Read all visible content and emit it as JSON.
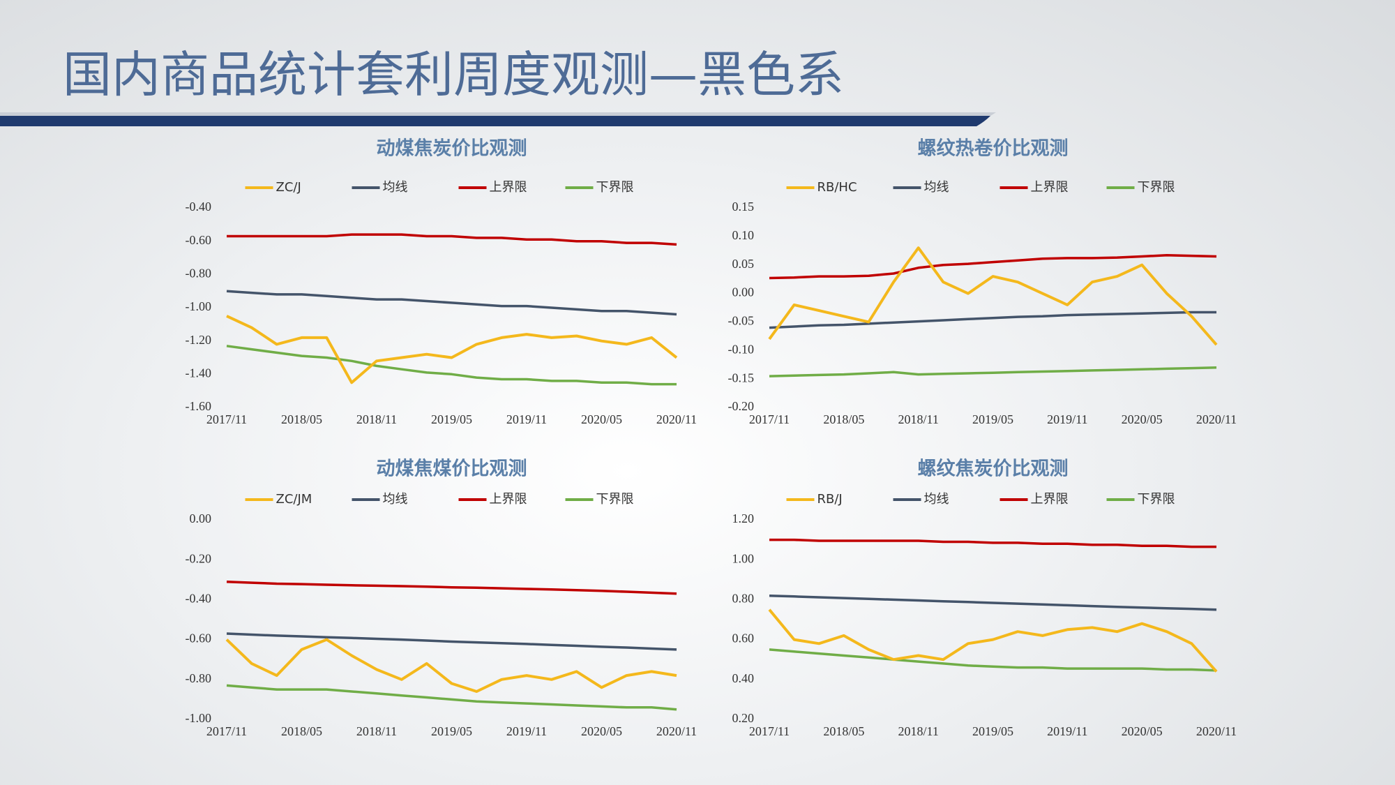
{
  "header": {
    "title": "国内商品统计套利周度观测—黑色系"
  },
  "chart_data": [
    {
      "type": "line",
      "title": "动煤焦炭价比观测",
      "categories": [
        "2017/11",
        null,
        null,
        "2018/05",
        null,
        null,
        "2018/11",
        null,
        null,
        "2019/05",
        null,
        null,
        "2019/11",
        null,
        null,
        "2020/05",
        null,
        null,
        "2020/11"
      ],
      "series": [
        {
          "name": "ZC/J",
          "color": "#f4b81c",
          "values": [
            -1.05,
            -1.12,
            -1.22,
            -1.18,
            -1.18,
            -1.45,
            -1.32,
            -1.3,
            -1.28,
            -1.3,
            -1.22,
            -1.18,
            -1.16,
            -1.18,
            -1.17,
            -1.2,
            -1.22,
            -1.18,
            -1.3
          ]
        },
        {
          "name": "均线",
          "color": "#44546a",
          "values": [
            -0.9,
            -0.91,
            -0.92,
            -0.92,
            -0.93,
            -0.94,
            -0.95,
            -0.95,
            -0.96,
            -0.97,
            -0.98,
            -0.99,
            -0.99,
            -1.0,
            -1.01,
            -1.02,
            -1.02,
            -1.03,
            -1.04
          ]
        },
        {
          "name": "上界限",
          "color": "#c00000",
          "values": [
            -0.57,
            -0.57,
            -0.57,
            -0.57,
            -0.57,
            -0.56,
            -0.56,
            -0.56,
            -0.57,
            -0.57,
            -0.58,
            -0.58,
            -0.59,
            -0.59,
            -0.6,
            -0.6,
            -0.61,
            -0.61,
            -0.62
          ]
        },
        {
          "name": "下界限",
          "color": "#70ad47",
          "values": [
            -1.23,
            -1.25,
            -1.27,
            -1.29,
            -1.3,
            -1.32,
            -1.35,
            -1.37,
            -1.39,
            -1.4,
            -1.42,
            -1.43,
            -1.43,
            -1.44,
            -1.44,
            -1.45,
            -1.45,
            -1.46,
            -1.46
          ]
        }
      ],
      "ylim": [
        -1.6,
        -0.4
      ],
      "yticks": [
        {
          "value": -0.4,
          "label": "-0.40"
        },
        {
          "value": -0.6,
          "label": "-0.60"
        },
        {
          "value": -0.8,
          "label": "-0.80"
        },
        {
          "value": -1.0,
          "label": "-1.00"
        },
        {
          "value": -1.2,
          "label": "-1.20"
        },
        {
          "value": -1.4,
          "label": "-1.40"
        },
        {
          "value": -1.6,
          "label": "-1.60"
        }
      ],
      "legend": "top"
    },
    {
      "type": "line",
      "title": "螺纹热卷价比观测",
      "categories": [
        "2017/11",
        null,
        null,
        "2018/05",
        null,
        null,
        "2018/11",
        null,
        null,
        "2019/05",
        null,
        null,
        "2019/11",
        null,
        null,
        "2020/05",
        null,
        null,
        "2020/11"
      ],
      "series": [
        {
          "name": "RB/HC",
          "color": "#f4b81c",
          "values": [
            -0.08,
            -0.02,
            -0.03,
            -0.04,
            -0.05,
            0.02,
            0.08,
            0.02,
            0.0,
            0.03,
            0.02,
            0.0,
            -0.02,
            0.02,
            0.03,
            0.05,
            0.0,
            -0.04,
            -0.09
          ]
        },
        {
          "name": "均线",
          "color": "#44546a",
          "values": [
            -0.06,
            -0.058,
            -0.056,
            -0.055,
            -0.053,
            -0.051,
            -0.049,
            -0.047,
            -0.045,
            -0.043,
            -0.041,
            -0.04,
            -0.038,
            -0.037,
            -0.036,
            -0.035,
            -0.034,
            -0.033,
            -0.033
          ]
        },
        {
          "name": "上界限",
          "color": "#c00000",
          "values": [
            0.027,
            0.028,
            0.03,
            0.03,
            0.031,
            0.035,
            0.045,
            0.05,
            0.052,
            0.055,
            0.058,
            0.061,
            0.062,
            0.062,
            0.063,
            0.065,
            0.067,
            0.066,
            0.065
          ]
        },
        {
          "name": "下界限",
          "color": "#70ad47",
          "values": [
            -0.145,
            -0.144,
            -0.143,
            -0.142,
            -0.14,
            -0.138,
            -0.142,
            -0.141,
            -0.14,
            -0.139,
            -0.138,
            -0.137,
            -0.136,
            -0.135,
            -0.134,
            -0.133,
            -0.132,
            -0.131,
            -0.13
          ]
        }
      ],
      "ylim": [
        -0.2,
        0.15
      ],
      "yticks": [
        {
          "value": 0.15,
          "label": "0.15"
        },
        {
          "value": 0.1,
          "label": "0.10"
        },
        {
          "value": 0.05,
          "label": "0.05"
        },
        {
          "value": 0,
          "label": "0.00"
        },
        {
          "value": -0.05,
          "label": "-0.05"
        },
        {
          "value": -0.1,
          "label": "-0.10"
        },
        {
          "value": -0.15,
          "label": "-0.15"
        },
        {
          "value": -0.2,
          "label": "-0.20"
        }
      ],
      "legend": "top"
    },
    {
      "type": "line",
      "title": "动煤焦煤价比观测",
      "categories": [
        "2017/11",
        null,
        null,
        "2018/05",
        null,
        null,
        "2018/11",
        null,
        null,
        "2019/05",
        null,
        null,
        "2019/11",
        null,
        null,
        "2020/05",
        null,
        null,
        "2020/11"
      ],
      "series": [
        {
          "name": "ZC/JM",
          "color": "#f4b81c",
          "values": [
            -0.6,
            -0.72,
            -0.78,
            -0.65,
            -0.6,
            -0.68,
            -0.75,
            -0.8,
            -0.72,
            -0.82,
            -0.86,
            -0.8,
            -0.78,
            -0.8,
            -0.76,
            -0.84,
            -0.78,
            -0.76,
            -0.78
          ]
        },
        {
          "name": "均线",
          "color": "#44546a",
          "values": [
            -0.57,
            -0.575,
            -0.58,
            -0.584,
            -0.588,
            -0.592,
            -0.596,
            -0.6,
            -0.605,
            -0.61,
            -0.614,
            -0.618,
            -0.622,
            -0.627,
            -0.631,
            -0.636,
            -0.64,
            -0.645,
            -0.65
          ]
        },
        {
          "name": "上界限",
          "color": "#c00000",
          "values": [
            -0.31,
            -0.315,
            -0.32,
            -0.322,
            -0.325,
            -0.328,
            -0.33,
            -0.332,
            -0.335,
            -0.338,
            -0.34,
            -0.343,
            -0.346,
            -0.349,
            -0.352,
            -0.356,
            -0.36,
            -0.365,
            -0.37
          ]
        },
        {
          "name": "下界限",
          "color": "#70ad47",
          "values": [
            -0.83,
            -0.84,
            -0.85,
            -0.85,
            -0.85,
            -0.86,
            -0.87,
            -0.88,
            -0.89,
            -0.9,
            -0.91,
            -0.915,
            -0.92,
            -0.925,
            -0.93,
            -0.935,
            -0.94,
            -0.94,
            -0.95
          ]
        }
      ],
      "ylim": [
        -1.0,
        0
      ],
      "yticks": [
        {
          "value": 0,
          "label": "0.00"
        },
        {
          "value": -0.2,
          "label": "-0.20"
        },
        {
          "value": -0.4,
          "label": "-0.40"
        },
        {
          "value": -0.6,
          "label": "-0.60"
        },
        {
          "value": -0.8,
          "label": "-0.80"
        },
        {
          "value": -1.0,
          "label": "-1.00"
        }
      ],
      "legend": "top"
    },
    {
      "type": "line",
      "title": "螺纹焦炭价比观测",
      "categories": [
        "2017/11",
        null,
        null,
        "2018/05",
        null,
        null,
        "2018/11",
        null,
        null,
        "2019/05",
        null,
        null,
        "2019/11",
        null,
        null,
        "2020/05",
        null,
        null,
        "2020/11"
      ],
      "series": [
        {
          "name": "RB/J",
          "color": "#f4b81c",
          "values": [
            0.75,
            0.6,
            0.58,
            0.62,
            0.55,
            0.5,
            0.52,
            0.5,
            0.58,
            0.6,
            0.64,
            0.62,
            0.65,
            0.66,
            0.64,
            0.68,
            0.64,
            0.58,
            0.44
          ]
        },
        {
          "name": "均线",
          "color": "#44546a",
          "values": [
            0.82,
            0.816,
            0.812,
            0.808,
            0.804,
            0.8,
            0.796,
            0.792,
            0.788,
            0.784,
            0.78,
            0.776,
            0.772,
            0.768,
            0.764,
            0.76,
            0.757,
            0.754,
            0.75
          ]
        },
        {
          "name": "上界限",
          "color": "#c00000",
          "values": [
            1.1,
            1.1,
            1.095,
            1.095,
            1.095,
            1.095,
            1.095,
            1.09,
            1.09,
            1.085,
            1.085,
            1.08,
            1.08,
            1.075,
            1.075,
            1.07,
            1.07,
            1.065,
            1.065
          ]
        },
        {
          "name": "下界限",
          "color": "#70ad47",
          "values": [
            0.55,
            0.54,
            0.53,
            0.52,
            0.51,
            0.5,
            0.49,
            0.48,
            0.47,
            0.465,
            0.46,
            0.46,
            0.455,
            0.455,
            0.455,
            0.455,
            0.45,
            0.45,
            0.445
          ]
        }
      ],
      "ylim": [
        0.2,
        1.2
      ],
      "yticks": [
        {
          "value": 1.2,
          "label": "1.20"
        },
        {
          "value": 1.0,
          "label": "1.00"
        },
        {
          "value": 0.8,
          "label": "0.80"
        },
        {
          "value": 0.6,
          "label": "0.60"
        },
        {
          "value": 0.4,
          "label": "0.40"
        },
        {
          "value": 0.2,
          "label": "0.20"
        }
      ],
      "legend": "top"
    }
  ]
}
